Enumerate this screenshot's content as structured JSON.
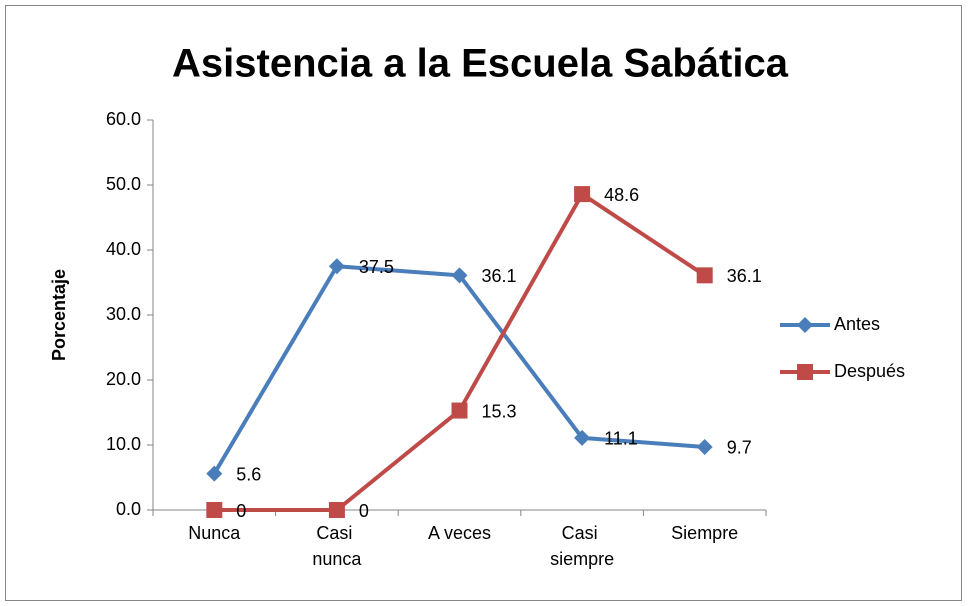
{
  "chart_data": {
    "type": "line",
    "title": "Asistencia a la Escuela Sabática",
    "y_label": "Porcentaje",
    "categories": [
      "Nunca",
      "Casi nunca",
      "A veces",
      "Casi siempre",
      "Siempre"
    ],
    "series": [
      {
        "name": "Antes",
        "color": "#4a7ebb",
        "marker": "diamond",
        "values": [
          5.6,
          37.5,
          36.1,
          11.1,
          9.7
        ]
      },
      {
        "name": "Después",
        "color": "#be4b48",
        "marker": "square",
        "values": [
          0,
          0,
          15.3,
          48.6,
          36.1
        ]
      }
    ],
    "ylim": [
      0,
      60
    ],
    "yticks": [
      {
        "value": 0,
        "label": "0.0"
      },
      {
        "value": 10,
        "label": "10.0"
      },
      {
        "value": 20,
        "label": "20.0"
      },
      {
        "value": 30,
        "label": "30.0"
      },
      {
        "value": 40,
        "label": "40.0"
      },
      {
        "value": 50,
        "label": "50.0"
      },
      {
        "value": 60,
        "label": "60.0"
      }
    ],
    "grid": false,
    "legend": "right"
  }
}
